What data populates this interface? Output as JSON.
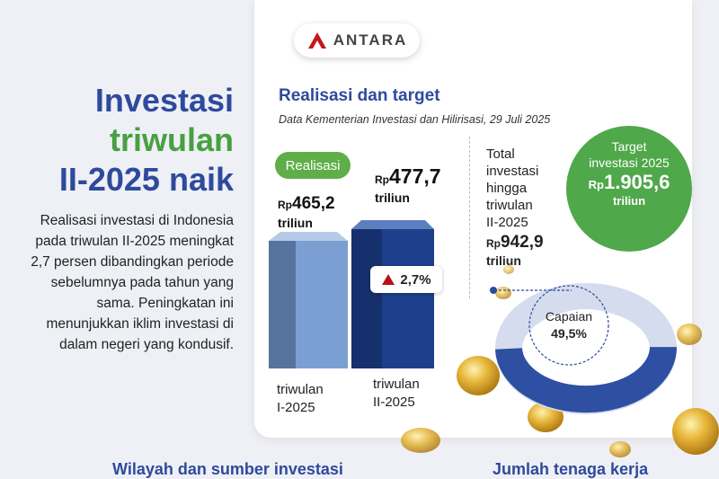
{
  "brand": {
    "name": "ANTARA"
  },
  "title": {
    "line1": "Investasi",
    "line2": "triwulan",
    "line3": "II-2025 naik"
  },
  "description": "Realisasi investasi di Indonesia pada triwulan II-2025 meningkat 2,7 persen dibandingkan periode sebelumnya pada tahun yang sama. Peningkatan ini menunjukkan iklim investasi di dalam negeri yang kondusif.",
  "section": {
    "title": "Realisasi dan target",
    "source": "Data Kementerian Investasi dan Hilirisasi, 29 Juli 2025",
    "badge": "Realisasi"
  },
  "quarters": [
    {
      "currency": "Rp",
      "value": "465,2",
      "unit": "triliun",
      "label1": "triwulan",
      "label2": "I-2025"
    },
    {
      "currency": "Rp",
      "value": "477,7",
      "unit": "triliun",
      "label1": "triwulan",
      "label2": "II-2025"
    }
  ],
  "growth": {
    "value": "2,7%"
  },
  "total": {
    "line1": "Total",
    "line2": "investasi",
    "line3": "hingga",
    "line4": "triwulan",
    "line5": "II-2025",
    "currency": "Rp",
    "value": "942,9",
    "unit": "triliun"
  },
  "target": {
    "line1": "Target",
    "line2": "investasi 2025",
    "currency": "Rp",
    "value": "1.905,6",
    "unit": "triliun"
  },
  "achievement": {
    "label": "Capaian",
    "value": "49,5%",
    "fraction": 0.495
  },
  "bottom": {
    "left": "Wilayah dan sumber investasi",
    "right": "Jumlah tenaga kerja"
  },
  "colors": {
    "blue": "#2e4a9c",
    "green": "#48a040",
    "bar1": "#7b9fd2",
    "bar2": "#1e3f8c",
    "gold": "#d9a425",
    "up": "#b5121b"
  }
}
